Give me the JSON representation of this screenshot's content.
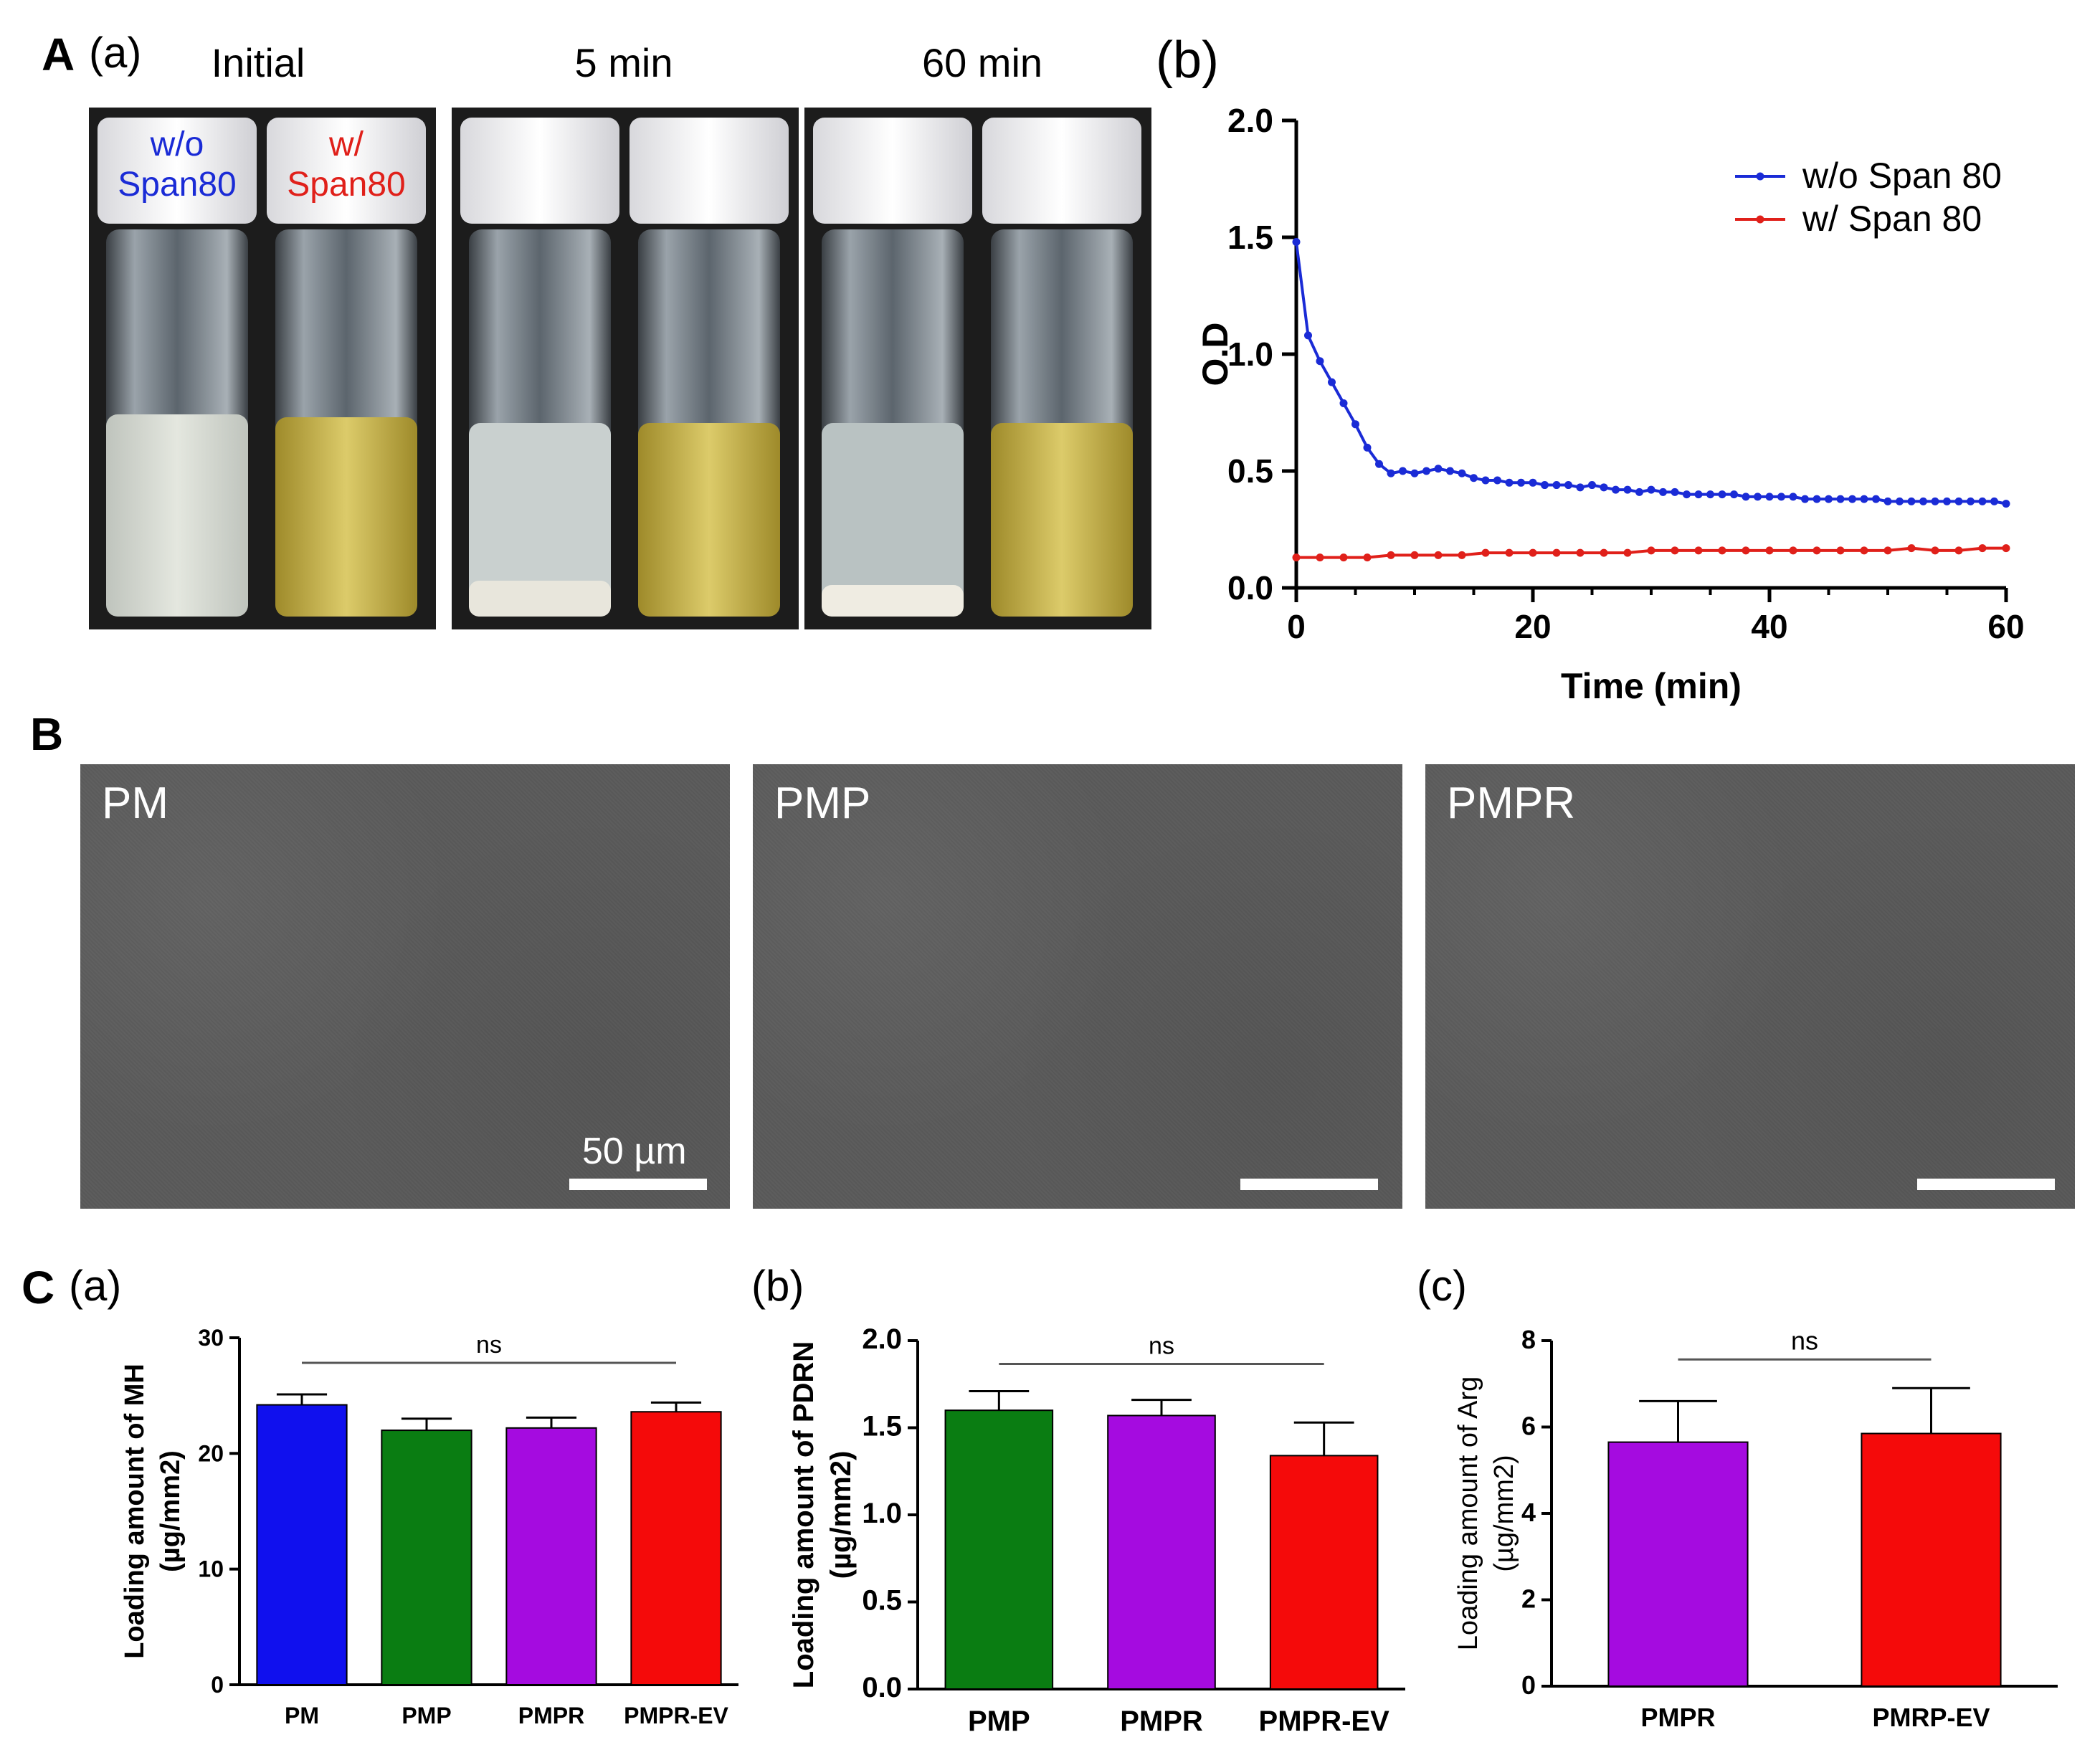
{
  "panelA": {
    "letter": "A",
    "sub_a": "(a)",
    "sub_b": "(b)",
    "photo_labels": [
      "Initial",
      "5 min",
      "60 min"
    ],
    "cap_texts": {
      "left_line1": "w/o",
      "left_line2": "Span80",
      "right_line1": "w/",
      "right_line2": "Span80"
    },
    "colors": {
      "blue_text": "#1a2bd6",
      "red_text": "#e0201a"
    }
  },
  "panelB": {
    "letter": "B",
    "images": [
      "PM",
      "PMP",
      "PMPR"
    ],
    "scale_label": "50 µm"
  },
  "panelC": {
    "letter": "C",
    "subs": [
      "(a)",
      "(b)",
      "(c)"
    ]
  },
  "chart_data": [
    {
      "id": "od-chart",
      "type": "line",
      "title": "",
      "xlabel": "Time (min)",
      "ylabel": "O.D",
      "xlim": [
        0,
        60
      ],
      "ylim": [
        0,
        2.0
      ],
      "xticks": [
        0,
        20,
        40,
        60
      ],
      "yticks": [
        0.0,
        0.5,
        1.0,
        1.5,
        2.0
      ],
      "ytick_labels": [
        "0.0",
        "0.5",
        "1.0",
        "1.5",
        "2.0"
      ],
      "legend_position": "top-right",
      "series": [
        {
          "name": "w/o Span 80",
          "color": "#1a2bd6",
          "x": [
            0,
            1,
            2,
            3,
            4,
            5,
            6,
            7,
            8,
            9,
            10,
            11,
            12,
            13,
            14,
            15,
            16,
            17,
            18,
            19,
            20,
            21,
            22,
            23,
            24,
            25,
            26,
            27,
            28,
            29,
            30,
            31,
            32,
            33,
            34,
            35,
            36,
            37,
            38,
            39,
            40,
            41,
            42,
            43,
            44,
            45,
            46,
            47,
            48,
            49,
            50,
            51,
            52,
            53,
            54,
            55,
            56,
            57,
            58,
            59,
            60
          ],
          "y": [
            1.48,
            1.08,
            0.97,
            0.88,
            0.79,
            0.7,
            0.6,
            0.53,
            0.49,
            0.5,
            0.49,
            0.5,
            0.51,
            0.5,
            0.49,
            0.47,
            0.46,
            0.46,
            0.45,
            0.45,
            0.45,
            0.44,
            0.44,
            0.44,
            0.43,
            0.44,
            0.43,
            0.42,
            0.42,
            0.41,
            0.42,
            0.41,
            0.41,
            0.4,
            0.4,
            0.4,
            0.4,
            0.4,
            0.39,
            0.39,
            0.39,
            0.39,
            0.39,
            0.38,
            0.38,
            0.38,
            0.38,
            0.38,
            0.38,
            0.38,
            0.37,
            0.37,
            0.37,
            0.37,
            0.37,
            0.37,
            0.37,
            0.37,
            0.37,
            0.37,
            0.36
          ]
        },
        {
          "name": "w/ Span 80",
          "color": "#e0201a",
          "x": [
            0,
            2,
            4,
            6,
            8,
            10,
            12,
            14,
            16,
            18,
            20,
            22,
            24,
            26,
            28,
            30,
            32,
            34,
            36,
            38,
            40,
            42,
            44,
            46,
            48,
            50,
            52,
            54,
            56,
            58,
            60
          ],
          "y": [
            0.13,
            0.13,
            0.13,
            0.13,
            0.14,
            0.14,
            0.14,
            0.14,
            0.15,
            0.15,
            0.15,
            0.15,
            0.15,
            0.15,
            0.15,
            0.16,
            0.16,
            0.16,
            0.16,
            0.16,
            0.16,
            0.16,
            0.16,
            0.16,
            0.16,
            0.16,
            0.17,
            0.16,
            0.16,
            0.17,
            0.17
          ]
        }
      ]
    },
    {
      "id": "mh-chart",
      "type": "bar",
      "title": "",
      "xlabel": "",
      "ylabel_line1": "Loading amount of MH",
      "ylabel_line2": "(µg/mm2)",
      "ylim": [
        0,
        30
      ],
      "yticks": [
        0,
        10,
        20,
        30
      ],
      "ytick_labels": [
        "0",
        "10",
        "20",
        "30"
      ],
      "categories": [
        "PM",
        "PMP",
        "PMPR",
        "PMPR-EV"
      ],
      "values": [
        24.2,
        22.0,
        22.2,
        23.6
      ],
      "errors": [
        0.9,
        1.0,
        0.9,
        0.8
      ],
      "colors": [
        "#1010ee",
        "#0a7d12",
        "#a50be0",
        "#f50a0a"
      ],
      "annotation": "ns",
      "annotation_span": [
        0,
        3
      ]
    },
    {
      "id": "pdrn-chart",
      "type": "bar",
      "title": "",
      "xlabel": "",
      "ylabel_line1": "Loading amount of PDRN",
      "ylabel_line2": "(µg/mm2)",
      "ylim": [
        0,
        2.0
      ],
      "yticks": [
        0.0,
        0.5,
        1.0,
        1.5,
        2.0
      ],
      "ytick_labels": [
        "0.0",
        "0.5",
        "1.0",
        "1.5",
        "2.0"
      ],
      "categories": [
        "PMP",
        "PMPR",
        "PMPR-EV"
      ],
      "values": [
        1.6,
        1.57,
        1.34
      ],
      "errors": [
        0.11,
        0.09,
        0.19
      ],
      "colors": [
        "#0a7d12",
        "#a50be0",
        "#f50a0a"
      ],
      "annotation": "ns",
      "annotation_span": [
        0,
        2
      ]
    },
    {
      "id": "arg-chart",
      "type": "bar",
      "title": "",
      "xlabel": "",
      "ylabel_line1": "Loading amount of Arg",
      "ylabel_line2": "(µg/mm2)",
      "ylim": [
        0,
        8
      ],
      "yticks": [
        0,
        2,
        4,
        6,
        8
      ],
      "ytick_labels": [
        "0",
        "2",
        "4",
        "6",
        "8"
      ],
      "categories": [
        "PMPR",
        "PMRP-EV"
      ],
      "values": [
        5.65,
        5.85
      ],
      "errors": [
        0.95,
        1.05
      ],
      "colors": [
        "#a50be0",
        "#f50a0a"
      ],
      "annotation": "ns",
      "annotation_span": [
        0,
        1
      ]
    }
  ]
}
